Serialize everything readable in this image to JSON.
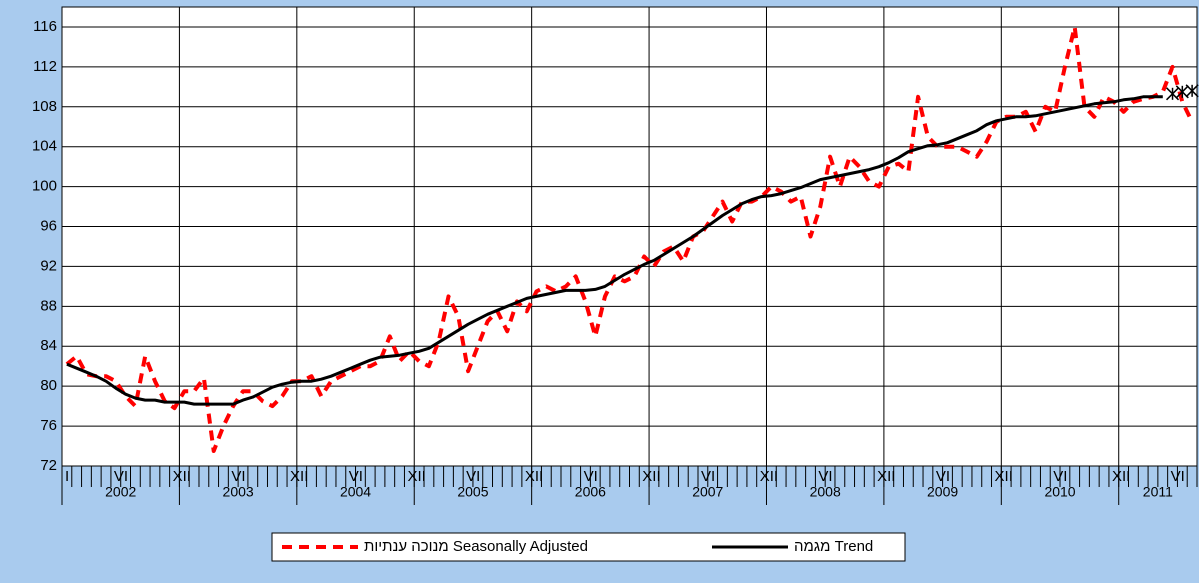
{
  "chart_data": {
    "type": "line",
    "categories": [
      "I",
      null,
      null,
      null,
      null,
      "VI",
      null,
      null,
      null,
      null,
      null,
      "XII",
      null,
      null,
      null,
      null,
      null,
      "VI",
      null,
      null,
      null,
      null,
      null,
      "XII",
      null,
      null,
      null,
      null,
      null,
      "VI",
      null,
      null,
      null,
      null,
      null,
      "XII",
      null,
      null,
      null,
      null,
      null,
      "VI",
      null,
      null,
      null,
      null,
      null,
      "XII",
      null,
      null,
      null,
      null,
      null,
      "VI",
      null,
      null,
      null,
      null,
      null,
      "XII",
      null,
      null,
      null,
      null,
      null,
      "VI",
      null,
      null,
      null,
      null,
      null,
      "XII",
      null,
      null,
      null,
      null,
      null,
      "VI",
      null,
      null,
      null,
      null,
      null,
      "XII",
      null,
      null,
      null,
      null,
      null,
      "VI",
      null,
      null,
      null,
      null,
      null,
      "XII",
      null,
      null,
      null,
      null,
      null,
      "VI",
      null,
      null,
      null,
      null,
      null,
      "XII",
      null,
      null,
      null,
      null,
      null,
      "VI",
      null,
      null
    ],
    "years": [
      "2002",
      "2003",
      "2004",
      "2005",
      "2006",
      "2007",
      "2008",
      "2009",
      "2010",
      "2011"
    ],
    "series": [
      {
        "name": "מנוכה ענתיות Seasonally Adjusted",
        "color": "#ff0000",
        "dashed": true,
        "values": [
          82.2,
          83,
          81.2,
          81,
          81,
          80.5,
          79,
          78,
          83,
          80.5,
          78.5,
          77.8,
          79.5,
          79.5,
          80.8,
          73.5,
          76,
          78,
          79.5,
          79.5,
          78.5,
          78,
          79,
          80.5,
          80.5,
          81,
          79,
          80.5,
          81,
          81.5,
          82,
          82,
          82.5,
          85,
          82.5,
          83.5,
          82.5,
          82,
          84.5,
          89,
          87,
          81.5,
          84,
          86.5,
          87.5,
          85.5,
          88.5,
          87.5,
          89.5,
          90,
          89.5,
          90,
          91,
          88.5,
          85,
          89,
          91,
          90.5,
          91,
          93,
          92,
          93.5,
          94,
          92.5,
          95,
          95.5,
          97,
          98.5,
          96.5,
          98.5,
          98.5,
          99,
          100,
          99.5,
          98.5,
          99,
          95,
          98,
          103,
          100,
          103,
          102,
          100.5,
          100,
          102,
          102.3,
          101.5,
          109,
          105,
          104,
          104,
          104,
          103.5,
          103,
          104.5,
          106.5,
          107,
          107,
          107.5,
          105.5,
          108,
          107.5,
          112,
          116,
          108,
          107,
          109,
          108.5,
          107.5,
          108.5,
          108.8,
          109,
          109.5,
          112,
          108.5,
          106.5
        ]
      },
      {
        "name": "מגמה Trend",
        "color": "#000000",
        "dashed": false,
        "values": [
          82.2,
          81.8,
          81.4,
          81.0,
          80.5,
          79.8,
          79.2,
          78.8,
          78.6,
          78.6,
          78.4,
          78.4,
          78.4,
          78.2,
          78.2,
          78.2,
          78.2,
          78.2,
          78.6,
          78.9,
          79.4,
          79.9,
          80.2,
          80.4,
          80.5,
          80.5,
          80.7,
          81.0,
          81.4,
          81.8,
          82.2,
          82.6,
          82.9,
          83.0,
          83.1,
          83.3,
          83.5,
          83.8,
          84.4,
          85.0,
          85.6,
          86.2,
          86.7,
          87.2,
          87.6,
          88.0,
          88.4,
          88.8,
          89.0,
          89.2,
          89.4,
          89.6,
          89.6,
          89.6,
          89.7,
          90.0,
          90.6,
          91.2,
          91.7,
          92.2,
          92.6,
          93.2,
          93.8,
          94.4,
          95.0,
          95.7,
          96.4,
          97.1,
          97.7,
          98.3,
          98.7,
          99.0,
          99.1,
          99.3,
          99.6,
          99.9,
          100.3,
          100.7,
          100.9,
          101.1,
          101.3,
          101.5,
          101.7,
          102.0,
          102.4,
          102.9,
          103.5,
          103.8,
          104.1,
          104.2,
          104.4,
          104.8,
          105.2,
          105.6,
          106.2,
          106.6,
          106.8,
          107.0,
          107.0,
          107.1,
          107.3,
          107.5,
          107.7,
          107.9,
          108.1,
          108.3,
          108.4,
          108.5,
          108.7,
          108.8,
          109.0,
          109.0,
          109.0,
          null,
          null,
          null
        ]
      },
      {
        "color": "#000000",
        "marker": "asterisk",
        "values": [
          null,
          null,
          null,
          null,
          null,
          null,
          null,
          null,
          null,
          null,
          null,
          null,
          null,
          null,
          null,
          null,
          null,
          null,
          null,
          null,
          null,
          null,
          null,
          null,
          null,
          null,
          null,
          null,
          null,
          null,
          null,
          null,
          null,
          null,
          null,
          null,
          null,
          null,
          null,
          null,
          null,
          null,
          null,
          null,
          null,
          null,
          null,
          null,
          null,
          null,
          null,
          null,
          null,
          null,
          null,
          null,
          null,
          null,
          null,
          null,
          null,
          null,
          null,
          null,
          null,
          null,
          null,
          null,
          null,
          null,
          null,
          null,
          null,
          null,
          null,
          null,
          null,
          null,
          null,
          null,
          null,
          null,
          null,
          null,
          null,
          null,
          null,
          null,
          null,
          null,
          null,
          null,
          null,
          null,
          null,
          null,
          null,
          null,
          null,
          null,
          null,
          null,
          null,
          null,
          null,
          null,
          null,
          null,
          null,
          null,
          null,
          null,
          null,
          109.3,
          109.5,
          109.6
        ]
      }
    ],
    "ylim": [
      72,
      118
    ],
    "yticks": [
      72,
      76,
      80,
      84,
      88,
      92,
      96,
      100,
      104,
      108,
      112,
      116
    ],
    "grid": true
  }
}
